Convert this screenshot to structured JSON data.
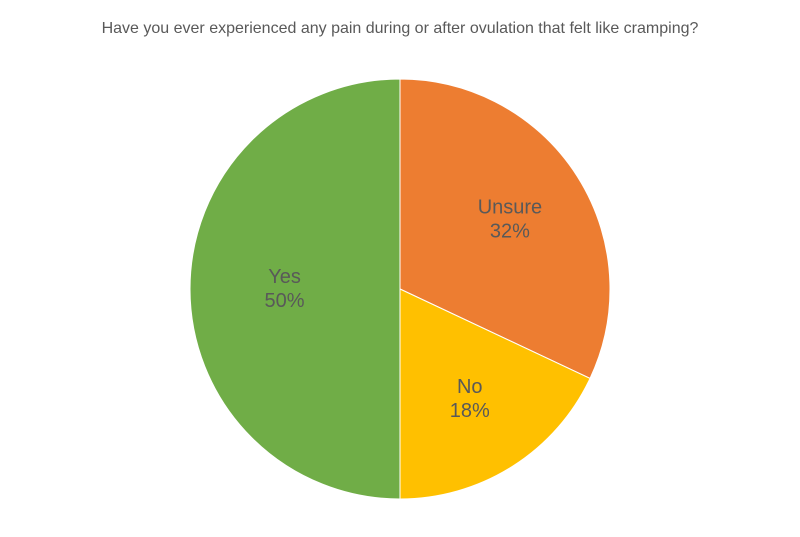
{
  "chart": {
    "type": "pie",
    "title": "Have you ever experienced any pain during or after ovulation that felt like cramping?",
    "title_fontsize": 16,
    "title_color": "#595959",
    "background_color": "#ffffff",
    "radius": 210,
    "start_angle_deg": 0,
    "direction": "clockwise",
    "label_fontsize": 20,
    "label_color": "#595959",
    "slices": [
      {
        "label": "Unsure",
        "value": 32,
        "display": "32%",
        "color": "#ed7d31",
        "label_r": 0.62
      },
      {
        "label": "No",
        "value": 18,
        "display": "18%",
        "color": "#ffc000",
        "label_r": 0.62
      },
      {
        "label": "Yes",
        "value": 50,
        "display": "50%",
        "color": "#70ad47",
        "label_r": 0.55
      }
    ]
  }
}
